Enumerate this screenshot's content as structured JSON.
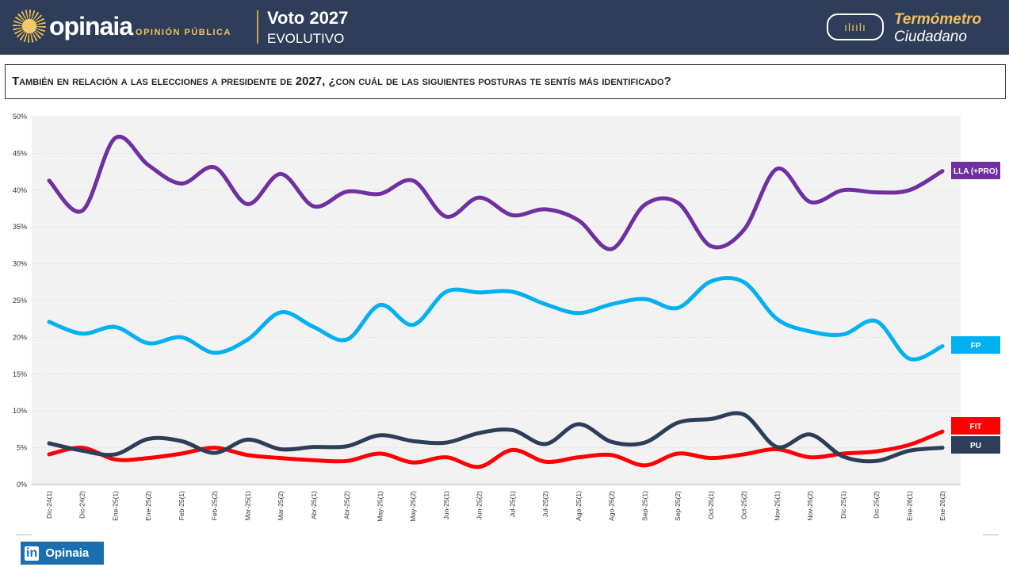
{
  "header": {
    "brand": "opinaia",
    "brand_sub": "OPINIÓN PÚBLICA",
    "title": "Voto 2027",
    "subtitle": "EVOLUTIVO",
    "badge_title": "Termómetro",
    "badge_subtitle": "Ciudadano"
  },
  "question": "También en relación a las elecciones a presidente de 2027, ¿con cuál de las siguientes posturas te sentís más identificado?",
  "footer": {
    "linkedin_label": "Opinaia",
    "linkedin_icon": "in"
  },
  "chart_data": {
    "type": "line",
    "ylim": [
      0,
      50
    ],
    "grid": true,
    "yticks": [
      "0%",
      "5%",
      "10%",
      "15%",
      "20%",
      "25%",
      "30%",
      "35%",
      "40%",
      "45%",
      "50%"
    ],
    "categories": [
      "Dic-24(1)",
      "Dic-24(2)",
      "Ene-25(1)",
      "Ene-25(2)",
      "Feb-25(1)",
      "Feb-25(2)",
      "Mar-25(1)",
      "Mar-25(2)",
      "Abr-25(1)",
      "Abr-25(2)",
      "May-25(1)",
      "May-25(2)",
      "Jun-25(1)",
      "Jun-25(2)",
      "Jul-25(1)",
      "Jul-25(2)",
      "Ago-25(1)",
      "Ago-25(2)",
      "Sep-25(1)",
      "Sep-25(2)",
      "Oct-25(1)",
      "Oct-25(2)",
      "Nov-25(1)",
      "Nov-25(2)",
      "Dic-25(1)",
      "Dic-25(2)",
      "Ene-26(1)",
      "Ene-26(2)"
    ],
    "series": [
      {
        "name": "LLA (+PRO)",
        "color": "#7030a0",
        "values": [
          41.3,
          37.2,
          47.1,
          43.4,
          40.9,
          43.1,
          38.1,
          42.2,
          37.8,
          39.8,
          39.5,
          41.3,
          36.4,
          39.0,
          36.6,
          37.4,
          35.9,
          32.0,
          38.0,
          38.3,
          32.4,
          34.6,
          42.9,
          38.4,
          40.0,
          39.7,
          40.0,
          42.6
        ]
      },
      {
        "name": "FP",
        "color": "#00b0f0",
        "values": [
          22.1,
          20.5,
          21.4,
          19.2,
          20.0,
          17.9,
          19.7,
          23.4,
          21.4,
          19.7,
          24.4,
          21.7,
          26.2,
          26.1,
          26.2,
          24.5,
          23.3,
          24.5,
          25.2,
          24.0,
          27.6,
          27.5,
          22.5,
          20.8,
          20.4,
          22.2,
          17.1,
          18.8
        ]
      },
      {
        "name": "FIT",
        "color": "#ff0000",
        "values": [
          4.1,
          5.0,
          3.4,
          3.6,
          4.2,
          5.0,
          4.0,
          3.6,
          3.3,
          3.2,
          4.2,
          3.0,
          3.7,
          2.4,
          4.7,
          3.1,
          3.7,
          4.0,
          2.6,
          4.2,
          3.6,
          4.1,
          4.8,
          3.7,
          4.2,
          4.5,
          5.4,
          7.2
        ]
      },
      {
        "name": "PU",
        "color": "#2e3e58",
        "values": [
          5.6,
          4.6,
          4.1,
          6.2,
          5.9,
          4.3,
          6.1,
          4.8,
          5.1,
          5.2,
          6.7,
          5.9,
          5.7,
          7.0,
          7.4,
          5.5,
          8.2,
          5.8,
          5.7,
          8.4,
          8.9,
          9.5,
          5.1,
          6.8,
          3.8,
          3.2,
          4.6,
          5.0
        ]
      }
    ]
  }
}
